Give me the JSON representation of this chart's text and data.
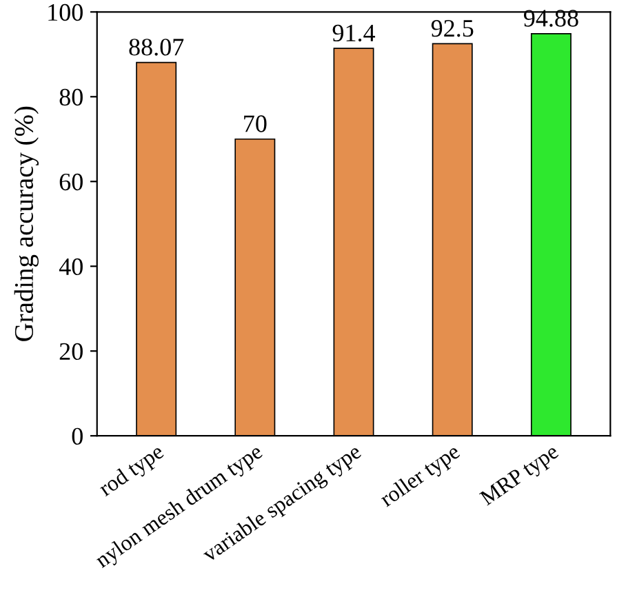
{
  "chart_data": {
    "type": "bar",
    "ylabel": "Grading accuracy (%)",
    "categories": [
      "rod type",
      "nylon mesh drum type",
      "variable spacing type",
      "roller type",
      "MRP type"
    ],
    "values": [
      88.07,
      70,
      91.4,
      92.5,
      94.88
    ],
    "colors": [
      "#e48f4e",
      "#e48f4e",
      "#e48f4e",
      "#e48f4e",
      "#2ee82e"
    ],
    "ylim": [
      0,
      100
    ],
    "yticks": [
      0,
      20,
      40,
      60,
      80,
      100
    ],
    "grid": false,
    "data_labels": true
  }
}
